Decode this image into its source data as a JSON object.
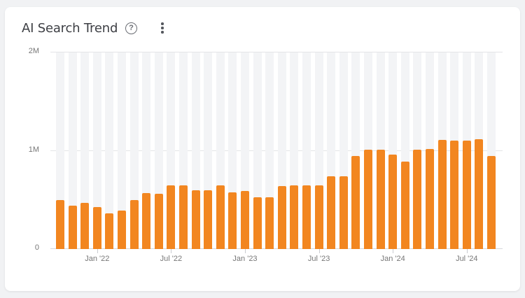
{
  "header": {
    "title": "AI Search Trend",
    "help_icon": "question-circle-icon",
    "menu_icon": "more-vertical-icon"
  },
  "colors": {
    "bar": "#f28620",
    "bar_background": "#f3f4f6",
    "gridline": "#e3e4e7"
  },
  "chart_data": {
    "type": "bar",
    "title": "AI Search Trend",
    "xlabel": "",
    "ylabel": "",
    "ylim": [
      0,
      2000000
    ],
    "yticks": [
      "0",
      "1M",
      "2M"
    ],
    "xticks": [
      {
        "label": "Jan '22",
        "index": 3
      },
      {
        "label": "Jul '22",
        "index": 9
      },
      {
        "label": "Jan '23",
        "index": 15
      },
      {
        "label": "Jul '23",
        "index": 21
      },
      {
        "label": "Jan '24",
        "index": 27
      },
      {
        "label": "Jul '24",
        "index": 33
      }
    ],
    "grid": true,
    "legend": null,
    "categories": [
      "Oct '21",
      "Nov '21",
      "Dec '21",
      "Jan '22",
      "Feb '22",
      "Mar '22",
      "Apr '22",
      "May '22",
      "Jun '22",
      "Jul '22",
      "Aug '22",
      "Sep '22",
      "Oct '22",
      "Nov '22",
      "Dec '22",
      "Jan '23",
      "Feb '23",
      "Mar '23",
      "Apr '23",
      "May '23",
      "Jun '23",
      "Jul '23",
      "Aug '23",
      "Sep '23",
      "Oct '23",
      "Nov '23",
      "Dec '23",
      "Jan '24",
      "Feb '24",
      "Mar '24",
      "Apr '24",
      "May '24",
      "Jun '24",
      "Jul '24",
      "Aug '24",
      "Sep '24"
    ],
    "values": [
      500000,
      440000,
      470000,
      430000,
      360000,
      390000,
      500000,
      570000,
      560000,
      650000,
      650000,
      600000,
      600000,
      650000,
      580000,
      590000,
      530000,
      530000,
      640000,
      650000,
      650000,
      650000,
      740000,
      740000,
      950000,
      1010000,
      1010000,
      960000,
      890000,
      1010000,
      1020000,
      1110000,
      1100000,
      1100000,
      1120000,
      950000
    ]
  }
}
